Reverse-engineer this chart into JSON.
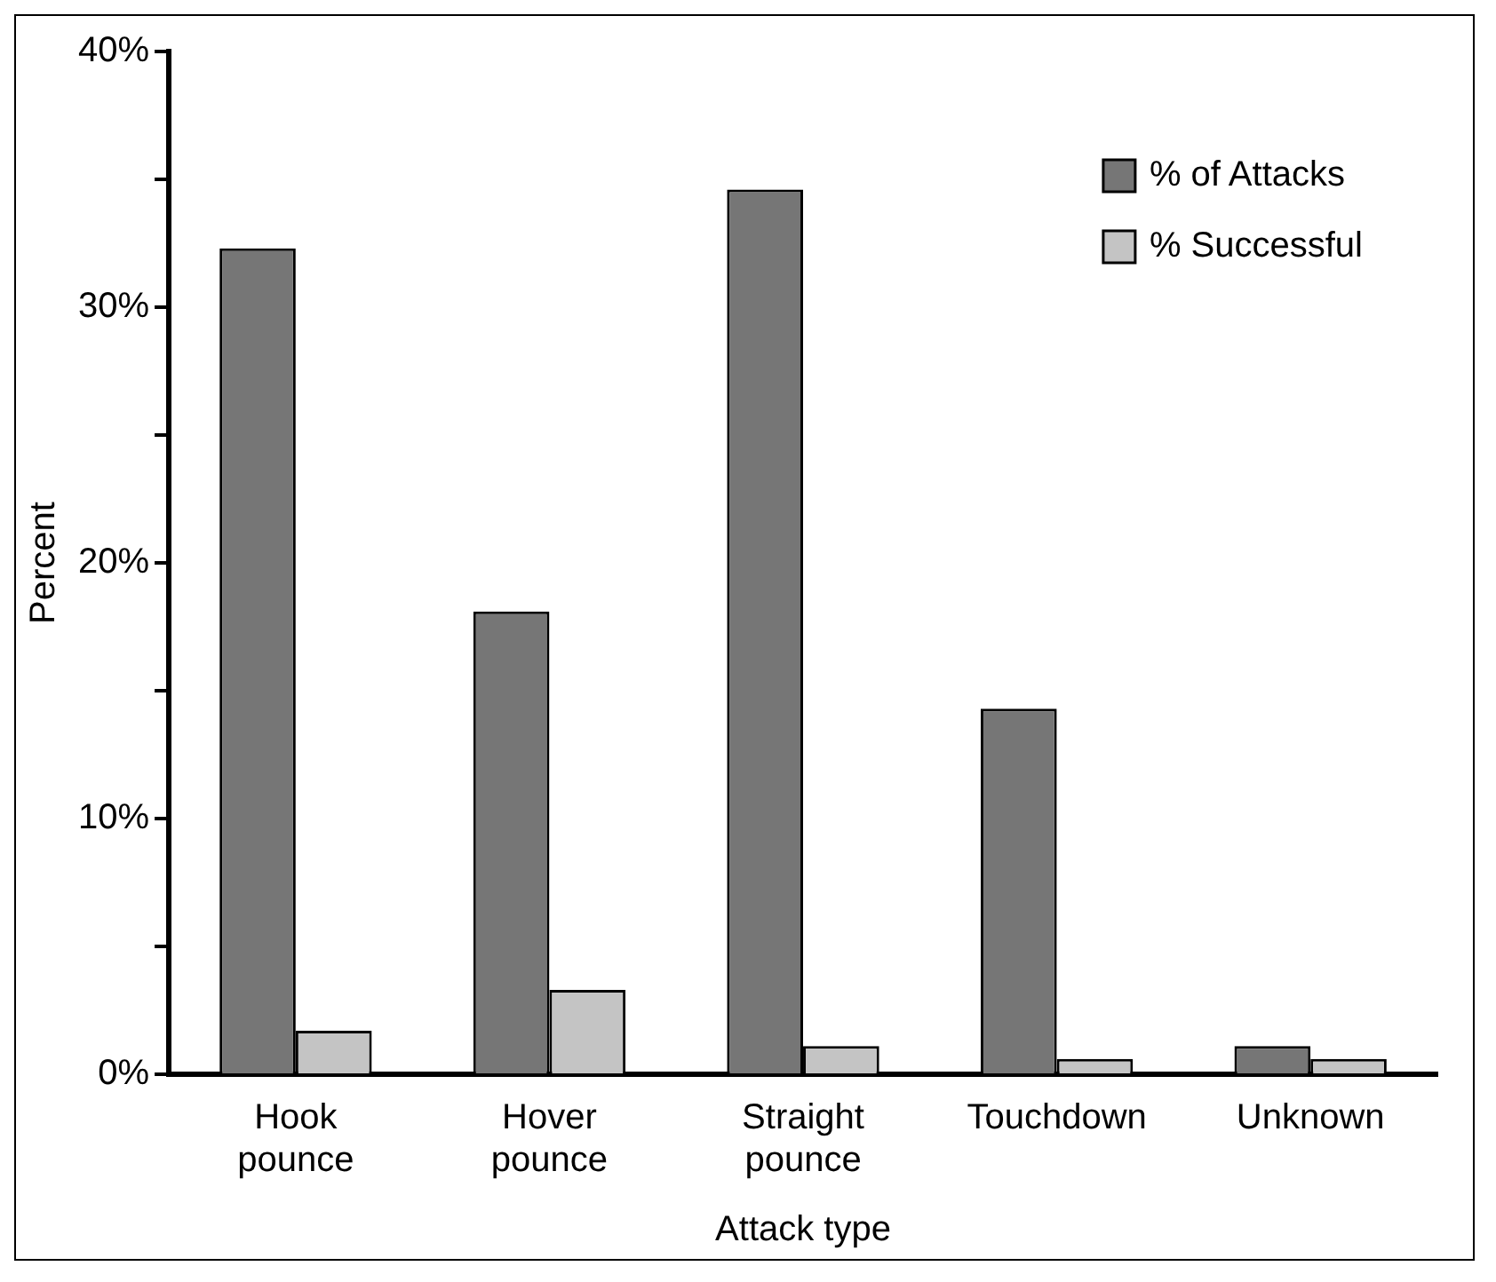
{
  "chart_data": {
    "type": "bar",
    "xlabel": "Attack type",
    "ylabel": "Percent",
    "categories": [
      "Hook pounce",
      "Hover pounce",
      "Straight pounce",
      "Touchdown",
      "Unknown"
    ],
    "series": [
      {
        "name": "% of Attacks",
        "color": "#767676",
        "values": [
          32.3,
          18.1,
          34.6,
          14.3,
          1.1
        ]
      },
      {
        "name": "% Successful",
        "color": "#c4c4c4",
        "values": [
          1.7,
          3.3,
          1.1,
          0.6,
          0.6
        ]
      }
    ],
    "ylim": [
      0,
      40
    ],
    "yticks": [
      {
        "value": 0,
        "label": "0%"
      },
      {
        "value": 5,
        "label": null
      },
      {
        "value": 10,
        "label": "10%"
      },
      {
        "value": 15,
        "label": null
      },
      {
        "value": 20,
        "label": "20%"
      },
      {
        "value": 25,
        "label": null
      },
      {
        "value": 30,
        "label": "30%"
      },
      {
        "value": 35,
        "label": null
      },
      {
        "value": 40,
        "label": "40%"
      }
    ],
    "grid": false,
    "legend": "top right"
  }
}
